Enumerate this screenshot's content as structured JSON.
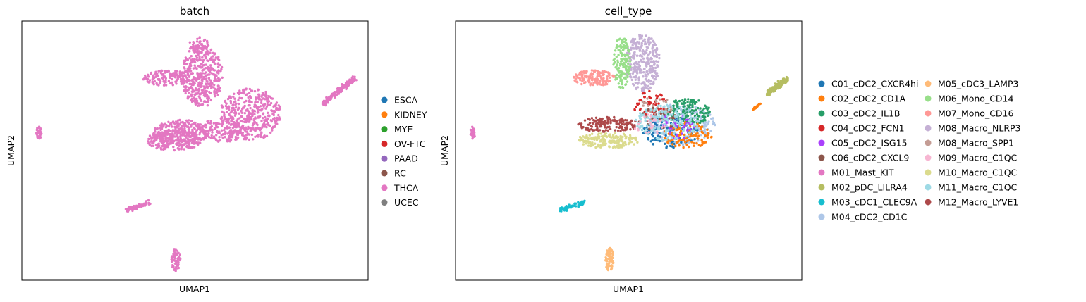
{
  "chart_data": [
    {
      "type": "scatter",
      "title": "batch",
      "xlabel": "UMAP1",
      "ylabel": "UMAP2",
      "grid": false,
      "ticks": false,
      "legend_placement": "right",
      "legend": [
        {
          "name": "ESCA",
          "color": "#1f77b4"
        },
        {
          "name": "KIDNEY",
          "color": "#ff7f0e"
        },
        {
          "name": "MYE",
          "color": "#2ca02c"
        },
        {
          "name": "OV-FTC",
          "color": "#d62728"
        },
        {
          "name": "PAAD",
          "color": "#9467bd"
        },
        {
          "name": "RC",
          "color": "#8c564b"
        },
        {
          "name": "THCA",
          "color": "#e377c2"
        },
        {
          "name": "UCEC",
          "color": "#7f7f7f"
        }
      ],
      "xlim": [
        0,
        100
      ],
      "ylim": [
        0,
        100
      ],
      "clusters": [
        {
          "group": "THCA",
          "shape": "ellipse",
          "cx": 52,
          "cy": 79,
          "rx": 6,
          "ry": 12,
          "n": 420
        },
        {
          "group": "THCA",
          "shape": "ellipse",
          "cx": 51,
          "cy": 91,
          "rx": 3,
          "ry": 3,
          "n": 40
        },
        {
          "group": "THCA",
          "shape": "ellipse",
          "cx": 66,
          "cy": 64,
          "rx": 9,
          "ry": 10,
          "n": 420
        },
        {
          "group": "THCA",
          "shape": "ellipse",
          "cx": 46,
          "cy": 57,
          "rx": 8,
          "ry": 5,
          "n": 260
        },
        {
          "group": "THCA",
          "shape": "ellipse",
          "cx": 58,
          "cy": 58,
          "rx": 6,
          "ry": 5,
          "n": 160
        },
        {
          "group": "THCA",
          "shape": "ellipse",
          "cx": 44,
          "cy": 54,
          "rx": 8,
          "ry": 4,
          "n": 220
        },
        {
          "group": "THCA",
          "shape": "ellipse",
          "cx": 42,
          "cy": 78,
          "rx": 7,
          "ry": 3,
          "n": 140
        },
        {
          "group": "THCA",
          "shape": "line",
          "x1": 87,
          "y1": 68,
          "x2": 96,
          "y2": 78,
          "w": 1.6,
          "n": 170
        },
        {
          "group": "THCA",
          "shape": "ellipse",
          "cx": 5,
          "cy": 57,
          "rx": 0.8,
          "ry": 2.5,
          "n": 30
        },
        {
          "group": "THCA",
          "shape": "line",
          "x1": 30,
          "y1": 27,
          "x2": 37,
          "y2": 30,
          "w": 1.2,
          "n": 70
        },
        {
          "group": "THCA",
          "shape": "ellipse",
          "cx": 44.5,
          "cy": 8,
          "rx": 1.3,
          "ry": 4.5,
          "n": 70
        }
      ]
    },
    {
      "type": "scatter",
      "title": "cell_type",
      "xlabel": "UMAP1",
      "ylabel": "UMAP2",
      "grid": false,
      "ticks": false,
      "legend_placement": "right",
      "legend": [
        {
          "name": "C01_cDC2_CXCR4hi",
          "color": "#1f77b4"
        },
        {
          "name": "C02_cDC2_CD1A",
          "color": "#ff7f0e"
        },
        {
          "name": "C03_cDC2_IL1B",
          "color": "#279e68"
        },
        {
          "name": "C04_cDC2_FCN1",
          "color": "#d62728"
        },
        {
          "name": "C05_cDC2_ISG15",
          "color": "#aa40fc"
        },
        {
          "name": "C06_cDC2_CXCL9",
          "color": "#8c564b"
        },
        {
          "name": "M01_Mast_KIT",
          "color": "#e377c2"
        },
        {
          "name": "M02_pDC_LILRA4",
          "color": "#b5bd61"
        },
        {
          "name": "M03_cDC1_CLEC9A",
          "color": "#17becf"
        },
        {
          "name": "M04_cDC2_CD1C",
          "color": "#aec7e8"
        },
        {
          "name": "M05_cDC3_LAMP3",
          "color": "#ffbb78"
        },
        {
          "name": "M06_Mono_CD14",
          "color": "#98df8a"
        },
        {
          "name": "M07_Mono_CD16",
          "color": "#ff9896"
        },
        {
          "name": "M08_Macro_NLRP3",
          "color": "#c5b0d5"
        },
        {
          "name": "M08_Macro_SPP1",
          "color": "#c49c94"
        },
        {
          "name": "M09_Macro_C1QC",
          "color": "#f7b6d2"
        },
        {
          "name": "M10_Macro_C1QC",
          "color": "#dbdb8d"
        },
        {
          "name": "M11_Macro_C1QC",
          "color": "#9edae5"
        },
        {
          "name": "M12_Macro_LYVE1",
          "color": "#ad494a"
        }
      ],
      "xlim": [
        0,
        100
      ],
      "ylim": [
        0,
        100
      ],
      "clusters": [
        {
          "group": "M08_Macro_NLRP3",
          "shape": "ellipse",
          "cx": 54,
          "cy": 84,
          "rx": 5,
          "ry": 11,
          "n": 300
        },
        {
          "group": "M06_Mono_CD14",
          "shape": "ellipse",
          "cx": 48,
          "cy": 84,
          "rx": 2.5,
          "ry": 10,
          "n": 150
        },
        {
          "group": "M07_Mono_CD16",
          "shape": "ellipse",
          "cx": 40,
          "cy": 78,
          "rx": 6,
          "ry": 3,
          "n": 130
        },
        {
          "group": "M12_Macro_LYVE1",
          "shape": "ellipse",
          "cx": 44,
          "cy": 60,
          "rx": 9,
          "ry": 3,
          "n": 150
        },
        {
          "group": "M10_Macro_C1QC",
          "shape": "ellipse",
          "cx": 44,
          "cy": 54,
          "rx": 9,
          "ry": 3,
          "n": 180
        },
        {
          "group": "M04_cDC2_CD1C",
          "shape": "ellipse",
          "cx": 65,
          "cy": 60,
          "rx": 10,
          "ry": 8,
          "n": 260
        },
        {
          "group": "C03_cDC2_IL1B",
          "shape": "ellipse",
          "cx": 67,
          "cy": 65,
          "rx": 7,
          "ry": 5,
          "n": 150
        },
        {
          "group": "C01_cDC2_CXCR4hi",
          "shape": "ellipse",
          "cx": 62,
          "cy": 57,
          "rx": 8,
          "ry": 6,
          "n": 110
        },
        {
          "group": "C02_cDC2_CD1A",
          "shape": "ellipse",
          "cx": 67,
          "cy": 56,
          "rx": 7,
          "ry": 5,
          "n": 110
        },
        {
          "group": "C04_cDC2_FCN1",
          "shape": "ellipse",
          "cx": 56,
          "cy": 68,
          "rx": 5,
          "ry": 5,
          "n": 50
        },
        {
          "group": "C05_cDC2_ISG15",
          "shape": "ellipse",
          "cx": 63,
          "cy": 59,
          "rx": 6,
          "ry": 5,
          "n": 40
        },
        {
          "group": "C06_cDC2_CXCL9",
          "shape": "ellipse",
          "cx": 58,
          "cy": 62,
          "rx": 6,
          "ry": 5,
          "n": 30
        },
        {
          "group": "M08_Macro_SPP1",
          "shape": "ellipse",
          "cx": 58,
          "cy": 66,
          "rx": 5,
          "ry": 5,
          "n": 30
        },
        {
          "group": "M11_Macro_C1QC",
          "shape": "ellipse",
          "cx": 61,
          "cy": 61,
          "rx": 9,
          "ry": 7,
          "n": 140
        },
        {
          "group": "M09_Macro_C1QC",
          "shape": "ellipse",
          "cx": 56,
          "cy": 60,
          "rx": 5,
          "ry": 4,
          "n": 25
        },
        {
          "group": "M02_pDC_LILRA4",
          "shape": "line",
          "x1": 90,
          "y1": 72,
          "x2": 96,
          "y2": 78,
          "w": 1.6,
          "n": 140
        },
        {
          "group": "C02_cDC2_CD1A",
          "shape": "line",
          "x1": 86,
          "y1": 66,
          "x2": 89,
          "y2": 69,
          "w": 0.6,
          "n": 20
        },
        {
          "group": "M01_Mast_KIT",
          "shape": "ellipse",
          "cx": 5,
          "cy": 57,
          "rx": 0.8,
          "ry": 2.5,
          "n": 30
        },
        {
          "group": "M03_cDC1_CLEC9A",
          "shape": "line",
          "x1": 30,
          "y1": 27,
          "x2": 37,
          "y2": 30,
          "w": 1.2,
          "n": 70
        },
        {
          "group": "M05_cDC3_LAMP3",
          "shape": "ellipse",
          "cx": 44.5,
          "cy": 8,
          "rx": 1.3,
          "ry": 4.5,
          "n": 70
        }
      ]
    }
  ]
}
